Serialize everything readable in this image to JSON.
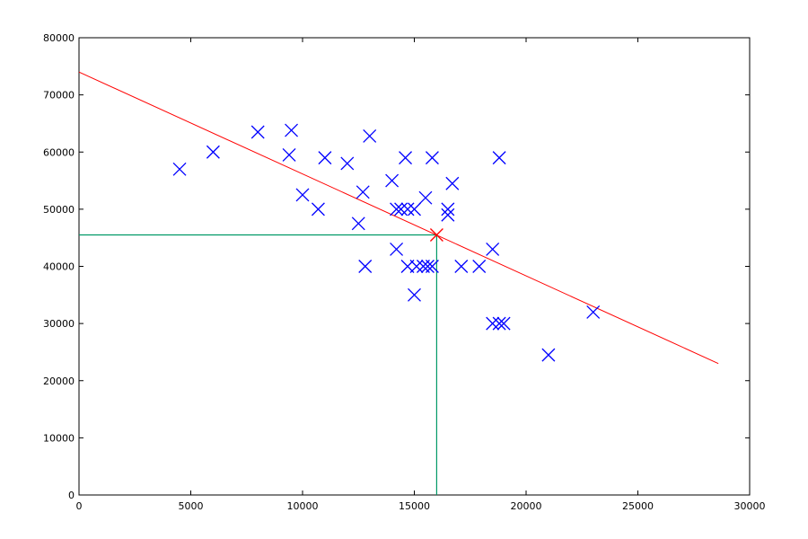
{
  "chart_data": {
    "type": "scatter",
    "title": "",
    "xlabel": "",
    "ylabel": "",
    "xlim": [
      0,
      30000
    ],
    "ylim": [
      0,
      80000
    ],
    "grid": false,
    "x_ticks": [
      0,
      5000,
      10000,
      15000,
      20000,
      25000,
      30000
    ],
    "y_ticks": [
      0,
      10000,
      20000,
      30000,
      40000,
      50000,
      60000,
      70000,
      80000
    ],
    "colors": {
      "points": "#0000ff",
      "fit_line": "#ff0000",
      "guide_lines": "#009966",
      "highlight": "#ff0000"
    },
    "points": [
      {
        "x": 4500,
        "y": 57000
      },
      {
        "x": 6000,
        "y": 60000
      },
      {
        "x": 8000,
        "y": 63500
      },
      {
        "x": 9400,
        "y": 59500
      },
      {
        "x": 9500,
        "y": 63800
      },
      {
        "x": 10000,
        "y": 52500
      },
      {
        "x": 10700,
        "y": 50000
      },
      {
        "x": 11000,
        "y": 59000
      },
      {
        "x": 12000,
        "y": 58000
      },
      {
        "x": 12500,
        "y": 47500
      },
      {
        "x": 12700,
        "y": 53000
      },
      {
        "x": 12800,
        "y": 40000
      },
      {
        "x": 13000,
        "y": 62800
      },
      {
        "x": 14000,
        "y": 55000
      },
      {
        "x": 14200,
        "y": 50000
      },
      {
        "x": 14200,
        "y": 43000
      },
      {
        "x": 14400,
        "y": 50000
      },
      {
        "x": 14600,
        "y": 59000
      },
      {
        "x": 14700,
        "y": 50000
      },
      {
        "x": 14700,
        "y": 40000
      },
      {
        "x": 15000,
        "y": 50000
      },
      {
        "x": 15000,
        "y": 35000
      },
      {
        "x": 15100,
        "y": 40000
      },
      {
        "x": 15400,
        "y": 40000
      },
      {
        "x": 15500,
        "y": 52000
      },
      {
        "x": 15600,
        "y": 40000
      },
      {
        "x": 15800,
        "y": 59000
      },
      {
        "x": 15800,
        "y": 40000
      },
      {
        "x": 16500,
        "y": 50000
      },
      {
        "x": 16500,
        "y": 49000
      },
      {
        "x": 16700,
        "y": 54500
      },
      {
        "x": 17100,
        "y": 40000
      },
      {
        "x": 17900,
        "y": 40000
      },
      {
        "x": 18500,
        "y": 43000
      },
      {
        "x": 18500,
        "y": 30000
      },
      {
        "x": 18800,
        "y": 59000
      },
      {
        "x": 18800,
        "y": 30000
      },
      {
        "x": 19000,
        "y": 30000
      },
      {
        "x": 21000,
        "y": 24500
      },
      {
        "x": 23000,
        "y": 32000
      }
    ],
    "fit_line": {
      "x": [
        0,
        28600
      ],
      "y": [
        74000,
        23000
      ]
    },
    "highlight_point": {
      "x": 16000,
      "y": 45500
    },
    "guide_lines": [
      {
        "x": [
          0,
          16000
        ],
        "y": [
          45500,
          45500
        ]
      },
      {
        "x": [
          16000,
          16000
        ],
        "y": [
          0,
          45500
        ]
      }
    ]
  }
}
